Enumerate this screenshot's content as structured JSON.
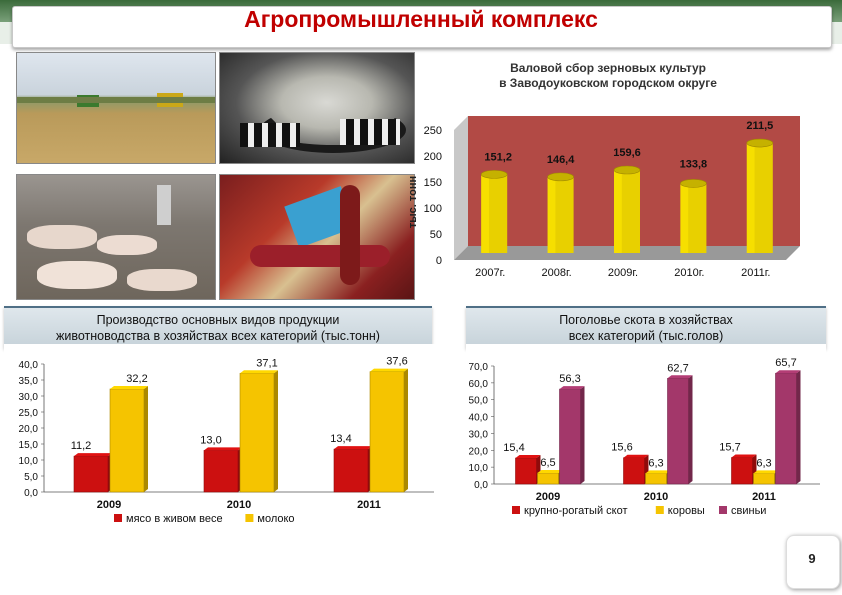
{
  "slide": {
    "title": "Агропромышленный комплекс",
    "page_number": "9",
    "photos": [
      {
        "name": "wheat-harvest-photo"
      },
      {
        "name": "dairy-farm-photo"
      },
      {
        "name": "pig-farm-photo"
      },
      {
        "name": "sausage-products-photo"
      }
    ]
  },
  "chart_data": [
    {
      "type": "bar",
      "title": "Валовой сбор зерновых культур\nв Заводоуковском городском округе",
      "ylabel": "тыс. тонн",
      "categories": [
        "2007г.",
        "2008г.",
        "2009г.",
        "2010г.",
        "2011г."
      ],
      "values": [
        151.2,
        146.4,
        159.6,
        133.8,
        211.5
      ],
      "value_labels": [
        "151,2",
        "146,4",
        "159,6",
        "133,8",
        "211,5"
      ],
      "ylim": [
        0,
        250
      ],
      "yticks": [
        "0",
        "50",
        "100",
        "150",
        "200",
        "250"
      ],
      "color": "#e8d000",
      "legend": "none",
      "grid": false
    },
    {
      "type": "bar",
      "title": "Производство основных видов продукции\nживотноводства в хозяйствах всех категорий (тыс.тонн)",
      "categories": [
        "2009",
        "2010",
        "2011"
      ],
      "series": [
        {
          "name": "мясо в живом весе",
          "color": "#cc1010",
          "values": [
            11.2,
            13.0,
            13.4
          ],
          "labels": [
            "11,2",
            "13,0",
            "13,4"
          ]
        },
        {
          "name": "молоко",
          "color": "#f5c400",
          "values": [
            32.2,
            37.1,
            37.6
          ],
          "labels": [
            "32,2",
            "37,1",
            "37,6"
          ]
        }
      ],
      "ylim": [
        0,
        40
      ],
      "yticks": [
        "0,0",
        "5,0",
        "10,0",
        "15,0",
        "20,0",
        "25,0",
        "30,0",
        "35,0",
        "40,0"
      ],
      "legend": "bottom",
      "grid": false
    },
    {
      "type": "bar",
      "title": "Поголовье скота в хозяйствах\nвсех категорий (тыс.голов)",
      "categories": [
        "2009",
        "2010",
        "2011"
      ],
      "series": [
        {
          "name": "крупно-рогатый скот",
          "color": "#cc1010",
          "values": [
            15.4,
            15.6,
            15.7
          ],
          "labels": [
            "15,4",
            "15,6",
            "15,7"
          ]
        },
        {
          "name": "коровы",
          "color": "#f5c400",
          "values": [
            6.5,
            6.3,
            6.3
          ],
          "labels": [
            "6,5",
            "6,3",
            "6,3"
          ]
        },
        {
          "name": "свиньи",
          "color": "#a3376a",
          "values": [
            56.3,
            62.7,
            65.7
          ],
          "labels": [
            "56,3",
            "62,7",
            "65,7"
          ]
        }
      ],
      "ylim": [
        0,
        70
      ],
      "yticks": [
        "0,0",
        "10,0",
        "20,0",
        "30,0",
        "40,0",
        "50,0",
        "60,0",
        "70,0"
      ],
      "legend": "bottom",
      "grid": false
    }
  ]
}
